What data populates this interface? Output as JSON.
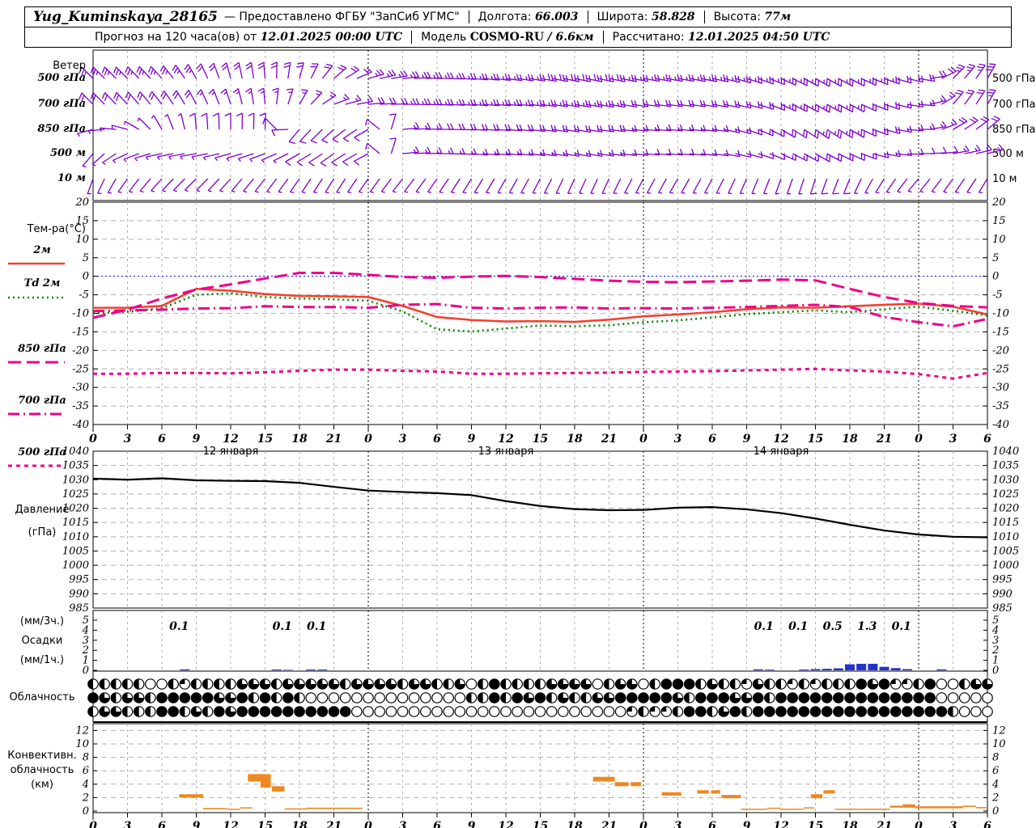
{
  "header": {
    "station": "Yug_Kuminskaya_28165",
    "provider": "— Предоставлено ФГБУ \"ЗапСиб УГМС\"",
    "lon_label": "Долгота:",
    "lon_value": "66.003",
    "lat_label": "Широта:",
    "lat_value": "58.828",
    "alt_label": "Высота:",
    "alt_value": "77м",
    "forecast_label": "Прогноз на 120 часа(ов) от",
    "forecast_start": "12.01.2025 00:00 UTC",
    "model_label": "Модель",
    "model_name": "COSMO-RU",
    "model_res": "/ 6.6км",
    "calc_label": "Рассчитано:",
    "calc_value": "12.01.2025 04:50 UTC"
  },
  "panels": {
    "wind": {
      "title": "Ветер",
      "levels": [
        "500 гПа",
        "700 гПа",
        "850 гПа",
        "500 м",
        "10 м"
      ]
    },
    "temp": {
      "title": "Тем-ра(°C)"
    },
    "pressure": {
      "line1": "Давление",
      "line2": "(гПа)"
    },
    "precip": {
      "line1": "(мм/3ч.)",
      "line2": "Осадки",
      "line3": "(мм/1ч.)"
    },
    "cloud": {
      "title": "Облачность"
    },
    "conv": {
      "line1": "Конвективн.",
      "line2": "облачность",
      "line3": "(км)"
    }
  },
  "colors": {
    "barb": "#7d00cc",
    "t2m": "#f54030",
    "td2m": "#008800",
    "pink": "#ee0088",
    "pressure": "#000000",
    "precip_bar": "#2233cc",
    "conv": "#ee8822",
    "zero_line": "#0000ff",
    "grid": "#b0b0b0",
    "day_line": "#000000"
  },
  "chart_data": [
    {
      "id": "time_axis",
      "x_step_hours": 3,
      "x_max_hours": 78,
      "tick_labels": [
        "0",
        "3",
        "6",
        "9",
        "12",
        "15",
        "18",
        "21",
        "0",
        "3",
        "6",
        "9",
        "12",
        "15",
        "18",
        "21",
        "0",
        "3",
        "6",
        "9",
        "12",
        "15",
        "18",
        "21",
        "0",
        "3",
        "6"
      ],
      "day_labels": [
        {
          "label": "12 января",
          "hour": 12
        },
        {
          "label": "13 января",
          "hour": 36
        },
        {
          "label": "14 января",
          "hour": 60
        }
      ]
    },
    {
      "id": "wind_barbs",
      "type": "barbs",
      "x_step_hours": 3,
      "rows": [
        {
          "level": "500 гПа",
          "angles_deg": [
            135,
            135,
            132,
            120,
            105,
            95,
            75,
            40,
            15,
            5,
            0,
            -5,
            -8,
            -10,
            -12,
            -12,
            -10,
            -10,
            -12,
            -18,
            -25,
            -30,
            -28,
            -20,
            -10,
            45,
            60
          ],
          "speeds_kt": [
            25,
            25,
            25,
            25,
            20,
            20,
            20,
            20,
            25,
            25,
            25,
            25,
            25,
            30,
            30,
            30,
            25,
            25,
            25,
            25,
            25,
            25,
            25,
            25,
            20,
            25,
            30
          ]
        },
        {
          "level": "700 гПа",
          "angles_deg": [
            135,
            133,
            128,
            118,
            108,
            95,
            60,
            20,
            5,
            0,
            -3,
            -5,
            -5,
            -8,
            -10,
            -10,
            -8,
            -8,
            -10,
            -15,
            -25,
            -30,
            -28,
            -18,
            -5,
            50,
            60
          ],
          "speeds_kt": [
            20,
            20,
            20,
            20,
            15,
            15,
            15,
            15,
            20,
            25,
            25,
            25,
            25,
            25,
            25,
            25,
            20,
            20,
            20,
            20,
            25,
            25,
            25,
            20,
            15,
            20,
            25
          ]
        },
        {
          "level": "850 гПа",
          "angles_deg": [
            195,
            165,
            120,
            95,
            90,
            88,
            230,
            222,
            210,
            5,
            0,
            -3,
            -5,
            -8,
            -10,
            -8,
            -5,
            -5,
            -8,
            -20,
            -30,
            -35,
            -30,
            -15,
            0,
            30,
            40
          ],
          "speeds_kt": [
            5,
            5,
            8,
            10,
            10,
            10,
            10,
            10,
            10,
            15,
            20,
            20,
            20,
            20,
            20,
            20,
            15,
            15,
            15,
            15,
            20,
            25,
            25,
            20,
            15,
            20,
            20
          ]
        },
        {
          "level": "500 м",
          "angles_deg": [
            230,
            205,
            192,
            190,
            195,
            200,
            210,
            215,
            208,
            5,
            0,
            -5,
            -5,
            -8,
            -10,
            -8,
            -5,
            -5,
            -8,
            -15,
            -25,
            -30,
            -25,
            -10,
            0,
            10,
            15
          ],
          "speeds_kt": [
            5,
            8,
            8,
            8,
            8,
            8,
            10,
            10,
            10,
            15,
            15,
            15,
            15,
            15,
            15,
            15,
            10,
            10,
            10,
            10,
            15,
            20,
            20,
            15,
            10,
            15,
            15
          ]
        },
        {
          "level": "10 м",
          "angles_deg": [
            250,
            235,
            228,
            225,
            228,
            232,
            235,
            238,
            235,
            232,
            235,
            238,
            240,
            242,
            245,
            245,
            242,
            240,
            242,
            246,
            250,
            252,
            248,
            238,
            230,
            234,
            238
          ],
          "speeds_kt": [
            5,
            5,
            5,
            5,
            5,
            5,
            5,
            5,
            5,
            8,
            8,
            8,
            8,
            8,
            8,
            8,
            5,
            5,
            5,
            5,
            8,
            10,
            10,
            8,
            5,
            8,
            8
          ]
        }
      ]
    },
    {
      "id": "temperature",
      "type": "line",
      "unit": "°C",
      "x_step_hours": 3,
      "x_max_hours": 78,
      "ylim": [
        -40,
        20
      ],
      "yticks": [
        20,
        15,
        10,
        5,
        0,
        -5,
        -10,
        -15,
        -20,
        -25,
        -30,
        -35,
        -40
      ],
      "zero_line": 0,
      "series": [
        {
          "name": "2м",
          "color": "#f54030",
          "dash": "",
          "width": 2.6,
          "values": [
            -8.5,
            -8.5,
            -8.0,
            -3.4,
            -3.9,
            -4.8,
            -5.3,
            -5.4,
            -5.6,
            -8.0,
            -11.0,
            -11.8,
            -12.2,
            -12.1,
            -12.3,
            -11.7,
            -10.8,
            -10.3,
            -9.7,
            -8.9,
            -8.4,
            -8.5,
            -8.1,
            -7.7,
            -7.4,
            -8.2,
            -10.3
          ]
        },
        {
          "name": "Td 2м",
          "color": "#008800",
          "dash": "2,4",
          "width": 2.6,
          "values": [
            -10.0,
            -9.6,
            -8.6,
            -5.0,
            -4.6,
            -5.6,
            -6.0,
            -6.2,
            -6.6,
            -9.5,
            -14.3,
            -14.9,
            -14.1,
            -13.3,
            -13.5,
            -13.2,
            -12.4,
            -11.9,
            -11.1,
            -10.2,
            -9.7,
            -9.2,
            -9.7,
            -8.9,
            -8.2,
            -9.3,
            -10.6
          ]
        },
        {
          "name": "850 гПа",
          "color": "#ee0088",
          "dash": "16,7",
          "width": 3,
          "values": [
            -11.2,
            -9.0,
            -6.0,
            -3.6,
            -2.2,
            -0.6,
            0.9,
            0.9,
            0.4,
            -0.2,
            -0.4,
            -0.1,
            0.1,
            -0.2,
            -0.7,
            -1.2,
            -1.5,
            -1.6,
            -1.4,
            -1.2,
            -0.9,
            -1.1,
            -3.4,
            -5.6,
            -7.2,
            -8.0,
            -8.4
          ]
        },
        {
          "name": "700 гПа",
          "color": "#ee0088",
          "dash": "14,5,2,5",
          "width": 3,
          "values": [
            -9.4,
            -9.2,
            -9.0,
            -8.7,
            -8.6,
            -8.1,
            -8.3,
            -8.3,
            -8.5,
            -7.7,
            -7.5,
            -8.5,
            -8.7,
            -8.5,
            -8.4,
            -8.7,
            -8.6,
            -8.7,
            -8.5,
            -8.3,
            -8.0,
            -7.7,
            -8.3,
            -11.0,
            -12.4,
            -13.5,
            -11.5
          ]
        },
        {
          "name": "500 гПа",
          "color": "#ee0088",
          "dash": "5,5",
          "width": 3,
          "values": [
            -26.3,
            -26.3,
            -26.1,
            -26.1,
            -26.2,
            -25.9,
            -25.5,
            -25.2,
            -25.2,
            -25.5,
            -25.7,
            -26.3,
            -26.3,
            -26.2,
            -26.1,
            -26.0,
            -25.8,
            -25.7,
            -25.6,
            -25.4,
            -25.2,
            -25.0,
            -25.4,
            -25.7,
            -26.4,
            -27.6,
            -26.1
          ]
        }
      ]
    },
    {
      "id": "pressure",
      "type": "line",
      "unit": "гПа",
      "x_step_hours": 3,
      "x_max_hours": 78,
      "ylim": [
        985,
        1040
      ],
      "yticks": [
        1040,
        1035,
        1030,
        1025,
        1020,
        1015,
        1010,
        1005,
        1000,
        995,
        990,
        985
      ],
      "color": "#000000",
      "values": [
        1030.4,
        1030.0,
        1030.5,
        1029.8,
        1029.6,
        1029.5,
        1028.9,
        1027.5,
        1026.2,
        1025.7,
        1025.3,
        1024.6,
        1022.5,
        1020.8,
        1019.7,
        1019.3,
        1019.4,
        1020.2,
        1020.4,
        1019.6,
        1018.3,
        1016.4,
        1014.2,
        1012.2,
        1010.8,
        1010.0,
        1009.8
      ]
    },
    {
      "id": "precipitation",
      "type": "bar",
      "unit": "мм",
      "ylim": [
        0,
        5
      ],
      "yticks": [
        5,
        4,
        3,
        2,
        1,
        0
      ],
      "labels_3h": [
        {
          "start_hour": 6,
          "value": "0.1"
        },
        {
          "start_hour": 15,
          "value": "0.1"
        },
        {
          "start_hour": 18,
          "value": "0.1"
        },
        {
          "start_hour": 57,
          "value": "0.1"
        },
        {
          "start_hour": 60,
          "value": "0.1"
        },
        {
          "start_hour": 63,
          "value": "0.5"
        },
        {
          "start_hour": 66,
          "value": "1.3"
        },
        {
          "start_hour": 69,
          "value": "0.1"
        }
      ],
      "hourly_mm": [
        [
          8,
          0.1
        ],
        [
          16,
          0.08
        ],
        [
          17,
          0.05
        ],
        [
          19,
          0.08
        ],
        [
          20,
          0.08
        ],
        [
          58,
          0.1
        ],
        [
          59,
          0.07
        ],
        [
          62,
          0.08
        ],
        [
          63,
          0.12
        ],
        [
          64,
          0.15
        ],
        [
          65,
          0.2
        ],
        [
          66,
          0.6
        ],
        [
          67,
          0.65
        ],
        [
          68,
          0.65
        ],
        [
          69,
          0.35
        ],
        [
          70,
          0.22
        ],
        [
          71,
          0.12
        ],
        [
          74,
          0.1
        ]
      ]
    },
    {
      "id": "cloudiness",
      "type": "symbols",
      "rows": [
        [
          0.5,
          0.5,
          0.5,
          0.5,
          0.5,
          0,
          0,
          0.5,
          0.25,
          0.5,
          0.5,
          0.5,
          0.5,
          0.75,
          0.75,
          0.75,
          0.5,
          0.75,
          0.75,
          0.75,
          0.75,
          0.75,
          0.5,
          0.75,
          0.75,
          0.75,
          0.75,
          0.5,
          0.75,
          0.75,
          0.5,
          0.5,
          0.75,
          0,
          0.5,
          1,
          0.5,
          0.5,
          0.5,
          0.5,
          0.75,
          0.75,
          0.75,
          0.75,
          0,
          0.5,
          0.75,
          0.75,
          0,
          0.5,
          1,
          1,
          1,
          0.5,
          0.75,
          0.5,
          0.5,
          0.25,
          0.75,
          0.5,
          0.5,
          0.25,
          0.5,
          0.25,
          0.5,
          0.5,
          0.5,
          1,
          0.75,
          1,
          0.25,
          0.25,
          0.5,
          1,
          0,
          0,
          0.5,
          0.75,
          0.75
        ],
        [
          1,
          0.75,
          0.5,
          0.75,
          0.75,
          0.5,
          1,
          1,
          1,
          1,
          1,
          0.75,
          0.75,
          1,
          0.5,
          1,
          0.5,
          1,
          0.5,
          0,
          0,
          0,
          0,
          0,
          0,
          0,
          0,
          0,
          0,
          0,
          0,
          0,
          0,
          0.5,
          0.5,
          1,
          0.5,
          1,
          0.75,
          1,
          0.5,
          0.75,
          0.5,
          0.5,
          0.75,
          0.75,
          1,
          1,
          1,
          1,
          1,
          0.75,
          0.5,
          1,
          1,
          1,
          0.75,
          0.75,
          1,
          0.5,
          1,
          1,
          1,
          1,
          1,
          1,
          1,
          1,
          1,
          1,
          1,
          1,
          1,
          1,
          0,
          0,
          0,
          0,
          0
        ],
        [
          0.5,
          0.75,
          0.75,
          0.5,
          0.5,
          0.5,
          1,
          1,
          0.5,
          0.75,
          0.5,
          1,
          0.75,
          1,
          1,
          1,
          1,
          1,
          1,
          1,
          1,
          1,
          1,
          0,
          0,
          0,
          0,
          0,
          0,
          0,
          0,
          0,
          0,
          0,
          0,
          0,
          0,
          0,
          0,
          0,
          0,
          0,
          0,
          0,
          0,
          0,
          0,
          0.25,
          0.5,
          0.25,
          0.25,
          0.5,
          1,
          1,
          0.5,
          0.75,
          1,
          0.5,
          1,
          1,
          1,
          1,
          1,
          1,
          1,
          1,
          1,
          1,
          1,
          1,
          1,
          1,
          1,
          1,
          1,
          0.5,
          0,
          0,
          0
        ]
      ]
    },
    {
      "id": "convective_cloudiness",
      "type": "blocks",
      "unit": "км",
      "ylim": [
        0,
        13
      ],
      "yticks": [
        12,
        10,
        8,
        6,
        4,
        2,
        0
      ],
      "blocks": [
        [
          7.5,
          9.6,
          2.0,
          2.5
        ],
        [
          9.6,
          11.7,
          0.25,
          0.45
        ],
        [
          11.7,
          12.8,
          0.2,
          0.35
        ],
        [
          12.8,
          13.9,
          0.4,
          0.55
        ],
        [
          13.5,
          15.5,
          4.4,
          5.5
        ],
        [
          14.6,
          15.5,
          3.5,
          4.4
        ],
        [
          15.6,
          16.7,
          2.9,
          3.7
        ],
        [
          16.7,
          18.6,
          0.25,
          0.4
        ],
        [
          18.6,
          23.5,
          0.3,
          0.5
        ],
        [
          43.6,
          45.5,
          4.4,
          5.1
        ],
        [
          45.5,
          46.7,
          3.7,
          4.3
        ],
        [
          46.9,
          47.8,
          3.7,
          4.3
        ],
        [
          49.6,
          51.3,
          2.3,
          2.8
        ],
        [
          52.7,
          53.7,
          2.6,
          3.1
        ],
        [
          53.9,
          54.7,
          2.6,
          3.1
        ],
        [
          54.8,
          56.5,
          1.9,
          2.4
        ],
        [
          56.5,
          58.8,
          0.2,
          0.35
        ],
        [
          58.8,
          60.0,
          0.35,
          0.5
        ],
        [
          60.0,
          62.0,
          0.2,
          0.35
        ],
        [
          62.0,
          62.9,
          0.4,
          0.55
        ],
        [
          62.6,
          63.6,
          1.9,
          2.5
        ],
        [
          63.7,
          64.7,
          2.6,
          3.1
        ],
        [
          64.7,
          69.5,
          0.2,
          0.35
        ],
        [
          69.5,
          70.6,
          0.5,
          0.8
        ],
        [
          70.6,
          71.7,
          0.5,
          1.0
        ],
        [
          71.7,
          75.9,
          0.4,
          0.7
        ],
        [
          75.9,
          77.0,
          0.6,
          0.8
        ],
        [
          77.0,
          78.0,
          0.4,
          0.6
        ]
      ]
    }
  ]
}
